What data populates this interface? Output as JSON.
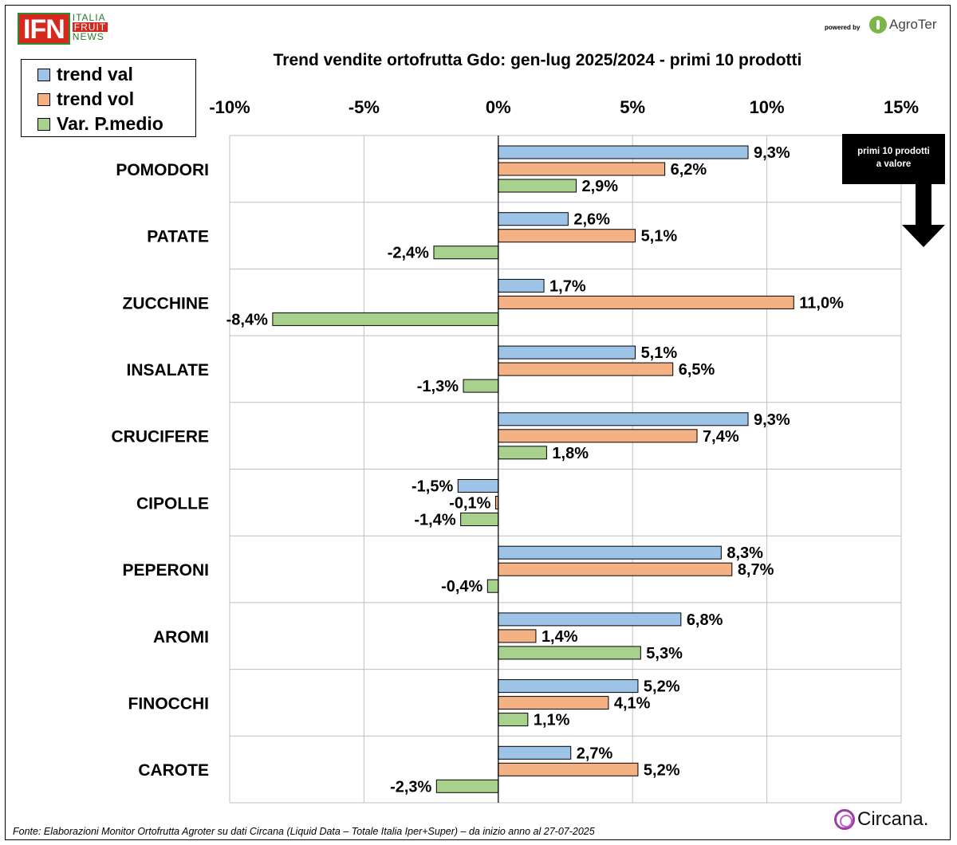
{
  "logo": {
    "main": "IFN",
    "line1": "ITALIA",
    "line2": "FRUIT",
    "line3": "NEWS"
  },
  "powered_by": "powered by",
  "agroter": "AgroTer",
  "note": {
    "line1": "primi 10 prodotti",
    "line2": "a valore"
  },
  "footer": "Fonte: Elaborazioni Monitor Ortofrutta Agroter su dati Circana (Liquid Data – Totale Italia Iper+Super) –  da inizio anno al 27-07-2025",
  "circana": "Circana.",
  "colors": {
    "trend_val": "#9dc3e6",
    "trend_vol": "#f4b183",
    "var_pmedio": "#a9d18e",
    "grid": "#bfbfbf"
  },
  "chart_data": {
    "type": "bar",
    "orientation": "horizontal",
    "title": "Trend vendite ortofrutta Gdo: gen-lug 2025/2024 - primi 10 prodotti",
    "xlim": [
      -10,
      15
    ],
    "xticks": [
      -10,
      -5,
      0,
      5,
      10,
      15
    ],
    "xtick_labels": [
      "-10%",
      "-5%",
      "0%",
      "5%",
      "10%",
      "15%"
    ],
    "grid": true,
    "legend_position": "top-left",
    "categories": [
      "POMODORI",
      "PATATE",
      "ZUCCHINE",
      "INSALATE",
      "CRUCIFERE",
      "CIPOLLE",
      "PEPERONI",
      "AROMI",
      "FINOCCHI",
      "CAROTE"
    ],
    "series": [
      {
        "name": "trend val",
        "values": [
          9.3,
          2.6,
          1.7,
          5.1,
          9.3,
          -1.5,
          8.3,
          6.8,
          5.2,
          2.7
        ],
        "labels": [
          "9,3%",
          "2,6%",
          "1,7%",
          "5,1%",
          "9,3%",
          "-1,5%",
          "8,3%",
          "6,8%",
          "5,2%",
          "2,7%"
        ]
      },
      {
        "name": "trend vol",
        "values": [
          6.2,
          5.1,
          11.0,
          6.5,
          7.4,
          -0.1,
          8.7,
          1.4,
          4.1,
          5.2
        ],
        "labels": [
          "6,2%",
          "5,1%",
          "11,0%",
          "6,5%",
          "7,4%",
          "-0,1%",
          "8,7%",
          "1,4%",
          "4,1%",
          "5,2%"
        ]
      },
      {
        "name": "Var. P.medio",
        "values": [
          2.9,
          -2.4,
          -8.4,
          -1.3,
          1.8,
          -1.4,
          -0.4,
          5.3,
          1.1,
          -2.3
        ],
        "labels": [
          "2,9%",
          "-2,4%",
          "-8,4%",
          "-1,3%",
          "1,8%",
          "-1,4%",
          "-0,4%",
          "5,3%",
          "1,1%",
          "-2,3%"
        ]
      }
    ]
  }
}
